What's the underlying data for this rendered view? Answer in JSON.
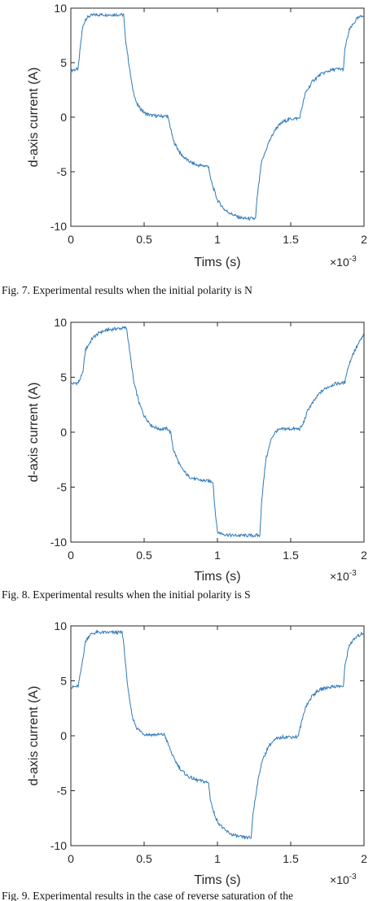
{
  "figures": [
    {
      "caption": "Fig. 7. Experimental results when the initial polarity is N"
    },
    {
      "caption": "Fig. 8. Experimental results when the initial polarity is S"
    },
    {
      "caption": "Fig. 9. Experimental results in the case of reverse saturation of the"
    }
  ],
  "colors": {
    "line": "#2f7ab8",
    "axis": "#262626",
    "background": "#ffffff"
  },
  "chart_data": [
    {
      "type": "line",
      "xlabel": "Tims (s)",
      "ylabel": "d-axis current (A)",
      "x_multiplier": "×10",
      "x_exponent": "-3",
      "xlim": [
        0,
        2
      ],
      "ylim": [
        -10,
        10
      ],
      "xticks": [
        "0",
        "0.5",
        "1",
        "1.5",
        "2"
      ],
      "yticks": [
        "-10",
        "-5",
        "0",
        "5",
        "10"
      ],
      "grid": false,
      "series": [
        {
          "x": [
            0,
            0.05,
            0.065,
            0.08,
            0.1,
            0.13,
            0.17,
            0.2,
            0.3,
            0.36,
            0.37,
            0.4,
            0.42,
            0.45,
            0.5,
            0.55,
            0.6,
            0.66,
            0.67,
            0.7,
            0.75,
            0.8,
            0.86,
            0.94,
            0.95,
            0.97,
            1.0,
            1.05,
            1.1,
            1.15,
            1.2,
            1.26,
            1.27,
            1.3,
            1.35,
            1.4,
            1.45,
            1.5,
            1.56,
            1.57,
            1.6,
            1.65,
            1.7,
            1.75,
            1.8,
            1.86,
            1.87,
            1.9,
            1.95,
            2.0
          ],
          "y": [
            4.3,
            4.4,
            6.5,
            8.2,
            9.0,
            9.3,
            9.4,
            9.4,
            9.4,
            9.4,
            7.5,
            4.5,
            2.7,
            1.2,
            0.4,
            0.15,
            0.1,
            0.1,
            -0.4,
            -2.2,
            -3.4,
            -4.0,
            -4.4,
            -4.5,
            -5.5,
            -6.4,
            -7.6,
            -8.5,
            -8.9,
            -9.2,
            -9.3,
            -9.3,
            -7.5,
            -4.2,
            -2.3,
            -1.0,
            -0.4,
            -0.15,
            -0.1,
            0.5,
            2.2,
            3.3,
            3.9,
            4.2,
            4.4,
            4.4,
            6.3,
            8.0,
            9.0,
            9.4
          ]
        }
      ]
    },
    {
      "type": "line",
      "xlabel": "Tims (s)",
      "ylabel": "d-axis current (A)",
      "x_multiplier": "×10",
      "x_exponent": "-3",
      "xlim": [
        0,
        2
      ],
      "ylim": [
        -10,
        10
      ],
      "xticks": [
        "0",
        "0.5",
        "1",
        "1.5",
        "2"
      ],
      "yticks": [
        "-10",
        "-5",
        "0",
        "5",
        "10"
      ],
      "grid": false,
      "series": [
        {
          "x": [
            0,
            0.05,
            0.08,
            0.1,
            0.15,
            0.2,
            0.25,
            0.3,
            0.38,
            0.4,
            0.43,
            0.47,
            0.5,
            0.55,
            0.6,
            0.66,
            0.68,
            0.7,
            0.75,
            0.8,
            0.85,
            0.9,
            0.97,
            0.98,
            1.0,
            1.05,
            1.1,
            1.15,
            1.2,
            1.29,
            1.3,
            1.33,
            1.37,
            1.4,
            1.45,
            1.5,
            1.56,
            1.58,
            1.62,
            1.7,
            1.75,
            1.8,
            1.87,
            1.88,
            1.92,
            1.96,
            2.0
          ],
          "y": [
            4.4,
            4.5,
            5.3,
            7.5,
            8.6,
            9.1,
            9.3,
            9.4,
            9.5,
            7.5,
            4.5,
            2.5,
            1.5,
            0.6,
            0.3,
            0.3,
            0.0,
            -1.6,
            -3.2,
            -4.0,
            -4.3,
            -4.4,
            -4.5,
            -6.5,
            -9.1,
            -9.3,
            -9.4,
            -9.4,
            -9.4,
            -9.4,
            -6.5,
            -2.5,
            -0.5,
            0.1,
            0.3,
            0.3,
            0.3,
            0.6,
            2.1,
            3.6,
            4.1,
            4.4,
            4.5,
            5.4,
            7.0,
            8.0,
            8.9
          ]
        }
      ]
    },
    {
      "type": "line",
      "xlabel": "Tims (s)",
      "ylabel": "d-axis current (A)",
      "x_multiplier": "×10",
      "x_exponent": "-3",
      "xlim": [
        0,
        2
      ],
      "ylim": [
        -10,
        10
      ],
      "xticks": [
        "0",
        "0.5",
        "1",
        "1.5",
        "2"
      ],
      "yticks": [
        "-10",
        "-5",
        "0",
        "5",
        "10"
      ],
      "grid": false,
      "series": [
        {
          "x": [
            0,
            0.05,
            0.07,
            0.1,
            0.13,
            0.17,
            0.2,
            0.3,
            0.35,
            0.36,
            0.38,
            0.4,
            0.42,
            0.45,
            0.5,
            0.55,
            0.6,
            0.64,
            0.65,
            0.7,
            0.75,
            0.8,
            0.85,
            0.92,
            0.94,
            0.95,
            0.97,
            1.0,
            1.05,
            1.1,
            1.15,
            1.23,
            1.24,
            1.27,
            1.3,
            1.35,
            1.4,
            1.45,
            1.5,
            1.55,
            1.56,
            1.6,
            1.65,
            1.7,
            1.75,
            1.8,
            1.86,
            1.87,
            1.9,
            1.95,
            2.0
          ],
          "y": [
            4.4,
            4.5,
            6.0,
            8.6,
            9.2,
            9.4,
            9.4,
            9.4,
            9.4,
            8.5,
            5.5,
            3.2,
            1.7,
            0.7,
            0.15,
            0.1,
            0.1,
            0.1,
            -0.3,
            -2.0,
            -3.1,
            -3.7,
            -4.0,
            -4.2,
            -4.3,
            -5.6,
            -6.8,
            -7.8,
            -8.6,
            -9.0,
            -9.2,
            -9.3,
            -7.4,
            -4.6,
            -2.5,
            -0.9,
            -0.3,
            -0.1,
            -0.1,
            -0.1,
            0.5,
            2.6,
            3.7,
            4.2,
            4.4,
            4.5,
            4.5,
            6.4,
            8.3,
            9.0,
            9.4
          ]
        }
      ]
    }
  ]
}
